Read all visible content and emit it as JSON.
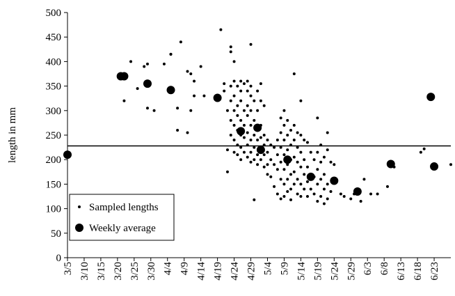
{
  "chart_data": {
    "type": "scatter",
    "y_label": "length in mm",
    "xlim": [
      0,
      115
    ],
    "xticks": [
      {
        "value": 0,
        "label": "3/5"
      },
      {
        "value": 5,
        "label": "3/10"
      },
      {
        "value": 10,
        "label": "3/15"
      },
      {
        "value": 15,
        "label": "3/20"
      },
      {
        "value": 20,
        "label": "3/25"
      },
      {
        "value": 25,
        "label": "3/30"
      },
      {
        "value": 30,
        "label": "4/4"
      },
      {
        "value": 35,
        "label": "4/9"
      },
      {
        "value": 40,
        "label": "4/14"
      },
      {
        "value": 45,
        "label": "4/19"
      },
      {
        "value": 50,
        "label": "4/24"
      },
      {
        "value": 55,
        "label": "4/29"
      },
      {
        "value": 60,
        "label": "5/4"
      },
      {
        "value": 65,
        "label": "5/9"
      },
      {
        "value": 70,
        "label": "5/14"
      },
      {
        "value": 75,
        "label": "5/19"
      },
      {
        "value": 80,
        "label": "5/24"
      },
      {
        "value": 85,
        "label": "5/29"
      },
      {
        "value": 90,
        "label": "6/3"
      },
      {
        "value": 95,
        "label": "6/8"
      },
      {
        "value": 100,
        "label": "6/13"
      },
      {
        "value": 105,
        "label": "6/18"
      },
      {
        "value": 110,
        "label": "6/23"
      }
    ],
    "ylim": [
      0,
      500
    ],
    "yticks": [
      0,
      50,
      100,
      150,
      200,
      250,
      300,
      350,
      400,
      450,
      500
    ],
    "reference_line": 228,
    "series": [
      {
        "name": "Sampled lengths",
        "color": "#000000",
        "x": [
          17,
          19,
          21,
          23,
          24,
          24,
          26,
          29,
          31,
          31,
          33,
          33,
          34,
          36,
          36,
          37,
          37,
          38,
          38,
          40,
          41,
          46,
          47,
          47,
          48,
          48,
          48,
          49,
          49,
          49,
          49,
          49,
          49,
          50,
          50,
          50,
          50,
          50,
          50,
          50,
          51,
          51,
          51,
          51,
          51,
          51,
          52,
          52,
          52,
          52,
          52,
          52,
          52,
          53,
          53,
          53,
          53,
          53,
          54,
          54,
          54,
          54,
          54,
          54,
          54,
          55,
          55,
          55,
          55,
          55,
          55,
          55,
          55,
          56,
          56,
          56,
          56,
          56,
          56,
          57,
          57,
          57,
          57,
          57,
          57,
          58,
          58,
          58,
          58,
          58,
          58,
          59,
          59,
          59,
          59,
          59,
          60,
          60,
          60,
          60,
          61,
          61,
          61,
          62,
          62,
          62,
          63,
          63,
          63,
          63,
          64,
          64,
          64,
          64,
          64,
          64,
          65,
          65,
          65,
          65,
          65,
          65,
          65,
          66,
          66,
          66,
          66,
          66,
          66,
          67,
          67,
          67,
          67,
          67,
          67,
          68,
          68,
          68,
          68,
          68,
          68,
          69,
          69,
          69,
          69,
          69,
          70,
          70,
          70,
          70,
          70,
          70,
          71,
          71,
          71,
          71,
          72,
          72,
          72,
          72,
          73,
          73,
          73,
          74,
          74,
          74,
          75,
          75,
          75,
          75,
          75,
          76,
          76,
          76,
          76,
          77,
          77,
          77,
          77,
          78,
          78,
          78,
          78,
          79,
          79,
          80,
          80,
          82,
          83,
          85,
          86,
          87,
          88,
          89,
          91,
          93,
          96,
          98,
          106,
          107,
          115
        ],
        "values": [
          320,
          400,
          345,
          390,
          395,
          305,
          300,
          395,
          415,
          415,
          305,
          260,
          440,
          255,
          380,
          375,
          300,
          360,
          330,
          390,
          330,
          465,
          340,
          355,
          300,
          220,
          175,
          430,
          420,
          350,
          320,
          280,
          250,
          400,
          360,
          330,
          300,
          270,
          240,
          215,
          350,
          310,
          290,
          260,
          230,
          210,
          360,
          340,
          320,
          280,
          250,
          225,
          200,
          355,
          300,
          270,
          245,
          215,
          360,
          340,
          310,
          290,
          255,
          230,
          205,
          435,
          350,
          330,
          300,
          270,
          240,
          215,
          195,
          320,
          280,
          250,
          225,
          200,
          118,
          340,
          300,
          265,
          240,
          210,
          190,
          355,
          320,
          270,
          245,
          220,
          200,
          310,
          250,
          230,
          210,
          185,
          240,
          215,
          190,
          170,
          230,
          200,
          165,
          225,
          190,
          145,
          240,
          210,
          180,
          130,
          285,
          255,
          225,
          195,
          160,
          120,
          300,
          270,
          240,
          210,
          180,
          150,
          125,
          280,
          250,
          220,
          190,
          160,
          135,
          260,
          230,
          200,
          170,
          140,
          118,
          375,
          270,
          240,
          205,
          175,
          150,
          255,
          225,
          195,
          160,
          130,
          320,
          250,
          215,
          185,
          150,
          125,
          240,
          200,
          170,
          140,
          235,
          185,
          155,
          125,
          215,
          170,
          140,
          200,
          165,
          130,
          285,
          215,
          180,
          150,
          115,
          230,
          195,
          160,
          125,
          205,
          170,
          140,
          110,
          255,
          220,
          150,
          120,
          195,
          135,
          190,
          160,
          130,
          125,
          120,
          130,
          140,
          115,
          160,
          130,
          130,
          145,
          185,
          215,
          222,
          190
        ]
      },
      {
        "name": "Weekly average",
        "color": "#000000",
        "x": [
          0,
          16,
          17,
          24,
          31,
          45,
          52,
          57,
          58,
          66,
          73,
          80,
          87,
          97,
          109,
          110
        ],
        "values": [
          210,
          370,
          370,
          355,
          342,
          326,
          258,
          265,
          220,
          200,
          165,
          157,
          135,
          191,
          328,
          186
        ]
      }
    ]
  }
}
